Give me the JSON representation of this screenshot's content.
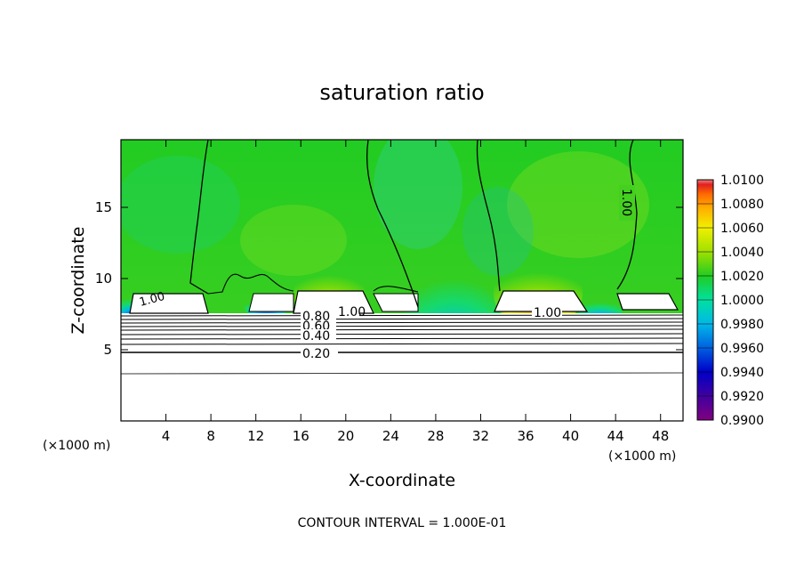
{
  "chart_data": {
    "type": "heatmap",
    "title": "saturation ratio",
    "xlabel": "X-coordinate",
    "ylabel": "Z-coordinate",
    "x_unit_left": "(×1000 m)",
    "x_unit_right": "(×1000 m)",
    "footer": "CONTOUR INTERVAL = 1.000E-01",
    "xlim": [
      0,
      50
    ],
    "ylim": [
      0,
      19.75
    ],
    "x_ticks": [
      4,
      8,
      12,
      16,
      20,
      24,
      28,
      32,
      36,
      40,
      44,
      48
    ],
    "y_ticks": [
      5,
      10,
      15
    ],
    "colorbar": {
      "min": 0.99,
      "max": 1.01,
      "labels": [
        "1.0100",
        "1.0080",
        "1.0060",
        "1.0040",
        "1.0020",
        "1.0000",
        "0.9980",
        "0.9960",
        "0.9940",
        "0.9920",
        "0.9900"
      ],
      "colors": [
        "#f08080",
        "#e02020",
        "#ff6a00",
        "#ffb000",
        "#f0f000",
        "#a0e000",
        "#22cc22",
        "#00e0a0",
        "#00b8e8",
        "#0060e0",
        "#0000c8",
        "#4000a0",
        "#800080"
      ]
    },
    "contour_labels": [
      "1.00",
      "1.00",
      "1.00",
      "0.80",
      "0.60",
      "0.40",
      "0.20",
      "1.00"
    ],
    "cloud_columns_x": [
      [
        1,
        7
      ],
      [
        16,
        22
      ],
      [
        33.5,
        41.5
      ],
      [
        44,
        49.5
      ]
    ]
  }
}
